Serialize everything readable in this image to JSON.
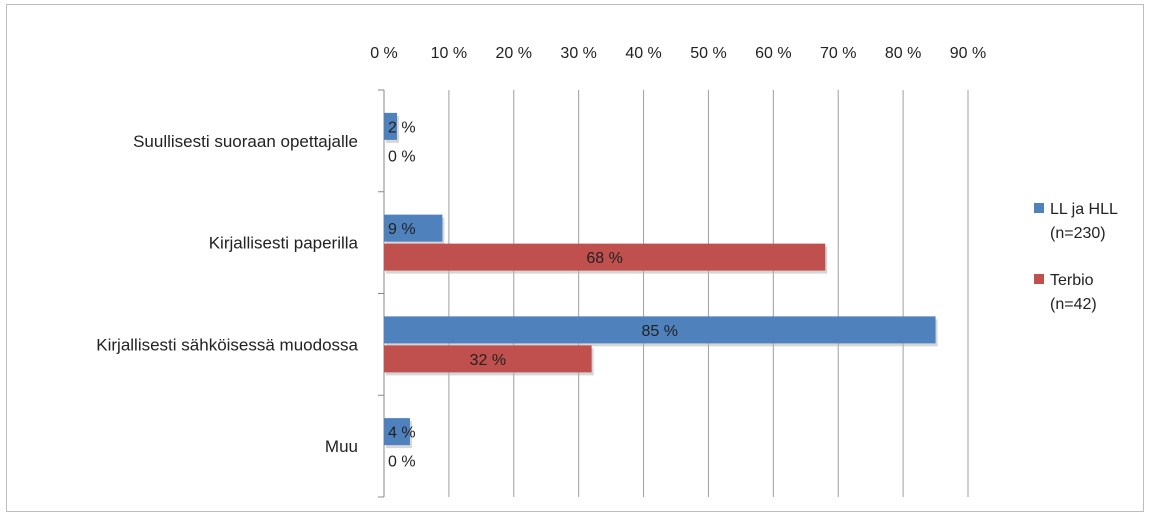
{
  "chart_data": {
    "type": "bar",
    "orientation": "horizontal",
    "categories": [
      "Suullisesti suoraan opettajalle",
      "Kirjallisesti paperilla",
      "Kirjallisesti sähköisessä muodossa",
      "Muu"
    ],
    "series": [
      {
        "name": "LL ja HLL (n=230)",
        "name_lines": [
          "LL ja HLL",
          "(n=230)"
        ],
        "color": "#4F81BD",
        "values": [
          2,
          9,
          85,
          4
        ],
        "labels": [
          "2 %",
          "9 %",
          "85 %",
          "4 %"
        ]
      },
      {
        "name": "Terbio (n=42)",
        "name_lines": [
          "Terbio",
          "(n=42)"
        ],
        "color": "#C0504D",
        "values": [
          0,
          68,
          32,
          0
        ],
        "labels": [
          "0 %",
          "68 %",
          "32 %",
          "0 %"
        ]
      }
    ],
    "xlim": [
      0,
      90
    ],
    "xticks": [
      0,
      10,
      20,
      30,
      40,
      50,
      60,
      70,
      80,
      90
    ],
    "xtick_labels": [
      "0 %",
      "10 %",
      "20 %",
      "30 %",
      "40 %",
      "50 %",
      "60 %",
      "70 %",
      "80 %",
      "90 %"
    ],
    "axis_position": "top",
    "grid": true,
    "legend": "right"
  }
}
